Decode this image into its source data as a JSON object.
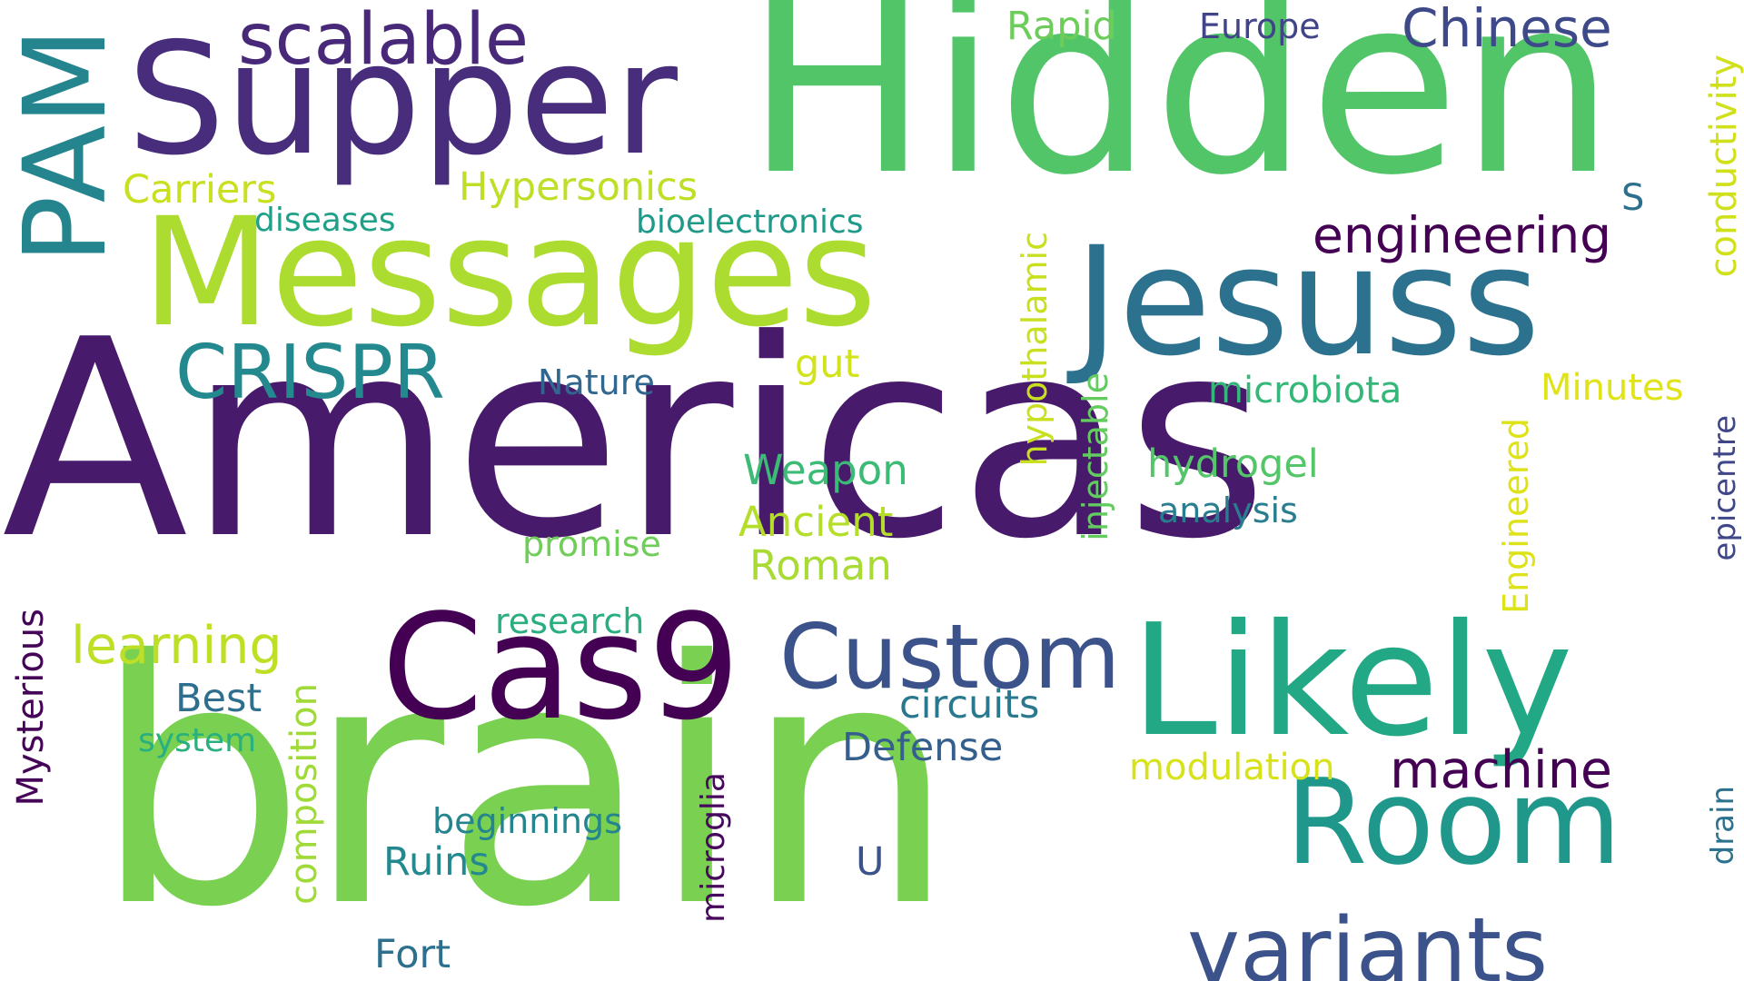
{
  "words": [
    {
      "text": "Americas",
      "color": "#481a6c"
    },
    {
      "text": "brain",
      "color": "#7ad151"
    },
    {
      "text": "Hidden",
      "color": "#52c569"
    },
    {
      "text": "Messages",
      "color": "#addc30"
    },
    {
      "text": "Jesuss",
      "color": "#2c728e"
    },
    {
      "text": "Supper",
      "color": "#472d7b"
    },
    {
      "text": "Likely",
      "color": "#22a884"
    },
    {
      "text": "Room",
      "color": "#1f988b"
    },
    {
      "text": "Cas9",
      "color": "#440154"
    },
    {
      "text": "PAM",
      "color": "#25858e"
    },
    {
      "text": "variants",
      "color": "#3b528b"
    },
    {
      "text": "Custom",
      "color": "#3b528b"
    },
    {
      "text": "scalable",
      "color": "#482878"
    },
    {
      "text": "CRISPR",
      "color": "#23898e"
    },
    {
      "text": "engineering",
      "color": "#440154"
    },
    {
      "text": "Chinese",
      "color": "#3e4989"
    },
    {
      "text": "machine",
      "color": "#440154"
    },
    {
      "text": "learning",
      "color": "#bddf26"
    },
    {
      "text": "conductivity",
      "color": "#d0e11c"
    },
    {
      "text": "Rapid",
      "color": "#6ccd5a"
    },
    {
      "text": "Europe",
      "color": "#414487"
    },
    {
      "text": "Carriers",
      "color": "#c8e020"
    },
    {
      "text": "Hypersonics",
      "color": "#bddf26"
    },
    {
      "text": "diseases",
      "color": "#1fa088"
    },
    {
      "text": "bioelectronics",
      "color": "#1f9a8a"
    },
    {
      "text": "S",
      "color": "#2d708e"
    },
    {
      "text": "hypothalamic",
      "color": "#c8e020"
    },
    {
      "text": "gut",
      "color": "#d2e21b"
    },
    {
      "text": "Nature",
      "color": "#31678e"
    },
    {
      "text": "microbiota",
      "color": "#35b779"
    },
    {
      "text": "Minutes",
      "color": "#e0e318"
    },
    {
      "text": "Weapon",
      "color": "#3bbb75"
    },
    {
      "text": "hydrogel",
      "color": "#54c568"
    },
    {
      "text": "injectable",
      "color": "#63cb5f"
    },
    {
      "text": "Ancient",
      "color": "#b5de2b"
    },
    {
      "text": "analysis",
      "color": "#287d8e"
    },
    {
      "text": "promise",
      "color": "#6ece58"
    },
    {
      "text": "Roman",
      "color": "#a8db34"
    },
    {
      "text": "Engineered",
      "color": "#dde318"
    },
    {
      "text": "epicentre",
      "color": "#3f4788"
    },
    {
      "text": "research",
      "color": "#29af7f"
    },
    {
      "text": "Mysterious",
      "color": "#450457"
    },
    {
      "text": "Best",
      "color": "#2e6f8e"
    },
    {
      "text": "circuits",
      "color": "#2a788e"
    },
    {
      "text": "system",
      "color": "#2ab07f"
    },
    {
      "text": "composition",
      "color": "#a0da39"
    },
    {
      "text": "Defense",
      "color": "#355f8d"
    },
    {
      "text": "modulation",
      "color": "#d8e219"
    },
    {
      "text": "microglia",
      "color": "#46085c"
    },
    {
      "text": "beginnings",
      "color": "#25858e"
    },
    {
      "text": "Ruins",
      "color": "#23898e"
    },
    {
      "text": "U",
      "color": "#3b528b"
    },
    {
      "text": "drain",
      "color": "#2c728e"
    },
    {
      "text": "Fort",
      "color": "#2d708e"
    }
  ]
}
